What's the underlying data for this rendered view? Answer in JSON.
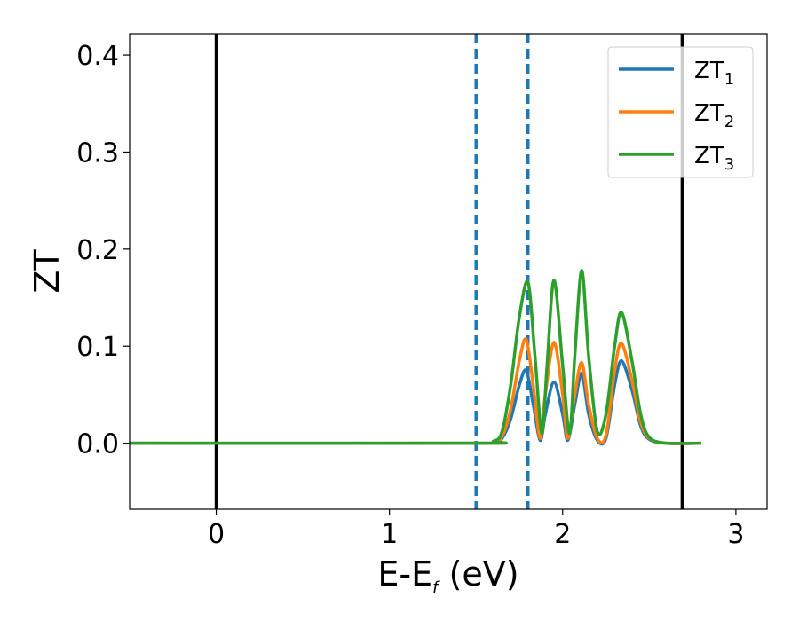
{
  "chart_data": {
    "type": "line",
    "xlabel_main": "E-E",
    "xlabel_sub": "f",
    "xlabel_unit": " (eV)",
    "ylabel": "ZT",
    "xlim": [
      -0.5,
      3.18
    ],
    "ylim": [
      -0.068,
      0.422
    ],
    "xticks": [
      0,
      1,
      2,
      3
    ],
    "yticks": [
      0.0,
      0.1,
      0.2,
      0.3,
      0.4
    ],
    "xtick_labels": [
      "0",
      "1",
      "2",
      "3"
    ],
    "ytick_labels": [
      "0.0",
      "0.1",
      "0.2",
      "0.3",
      "0.4"
    ],
    "grid": false,
    "legend_position": "top-right",
    "vertical_lines": [
      {
        "x": 0.0,
        "style": "solid",
        "color": "#000000"
      },
      {
        "x": 2.69,
        "style": "solid",
        "color": "#000000"
      },
      {
        "x": 1.5,
        "style": "dashed",
        "color": "#1f77b4"
      },
      {
        "x": 1.8,
        "style": "dashed",
        "color": "#1f77b4"
      }
    ],
    "series": [
      {
        "name": "ZT",
        "name_sub": "1",
        "color": "#1f77b4",
        "x": [
          -0.5,
          1.5,
          1.6,
          1.65,
          1.7,
          1.75,
          1.79,
          1.83,
          1.87,
          1.9,
          1.95,
          2.0,
          2.03,
          2.07,
          2.11,
          2.15,
          2.2,
          2.25,
          2.3,
          2.34,
          2.4,
          2.45,
          2.5,
          2.6,
          2.8
        ],
        "y": [
          0,
          0,
          0.001,
          0.005,
          0.025,
          0.06,
          0.075,
          0.04,
          0.003,
          0.03,
          0.063,
          0.03,
          0.003,
          0.04,
          0.072,
          0.03,
          0.003,
          0.005,
          0.06,
          0.085,
          0.055,
          0.018,
          0.004,
          0.0,
          0.0
        ]
      },
      {
        "name": "ZT",
        "name_sub": "2",
        "color": "#ff7f0e",
        "x": [
          -0.5,
          1.5,
          1.6,
          1.65,
          1.7,
          1.75,
          1.79,
          1.83,
          1.87,
          1.9,
          1.95,
          2.0,
          2.03,
          2.07,
          2.11,
          2.15,
          2.2,
          2.25,
          2.3,
          2.34,
          2.4,
          2.45,
          2.5,
          2.6,
          2.8
        ],
        "y": [
          0,
          0,
          0.001,
          0.007,
          0.035,
          0.085,
          0.107,
          0.06,
          0.005,
          0.05,
          0.104,
          0.05,
          0.005,
          0.05,
          0.083,
          0.04,
          0.005,
          0.008,
          0.075,
          0.103,
          0.065,
          0.022,
          0.005,
          0.0,
          0.0
        ]
      },
      {
        "name": "ZT",
        "name_sub": "3",
        "color": "#2ca02c",
        "x": [
          -0.5,
          1.5,
          1.6,
          1.65,
          1.7,
          1.75,
          1.8,
          1.84,
          1.88,
          1.91,
          1.95,
          2.0,
          2.04,
          2.07,
          2.11,
          2.15,
          2.2,
          2.25,
          2.3,
          2.34,
          2.4,
          2.45,
          2.5,
          2.6,
          2.8
        ],
        "y": [
          0,
          0,
          0.002,
          0.012,
          0.06,
          0.13,
          0.166,
          0.09,
          0.01,
          0.08,
          0.168,
          0.08,
          0.01,
          0.09,
          0.178,
          0.09,
          0.012,
          0.03,
          0.1,
          0.135,
          0.085,
          0.03,
          0.006,
          0.0,
          0.0
        ]
      }
    ]
  }
}
